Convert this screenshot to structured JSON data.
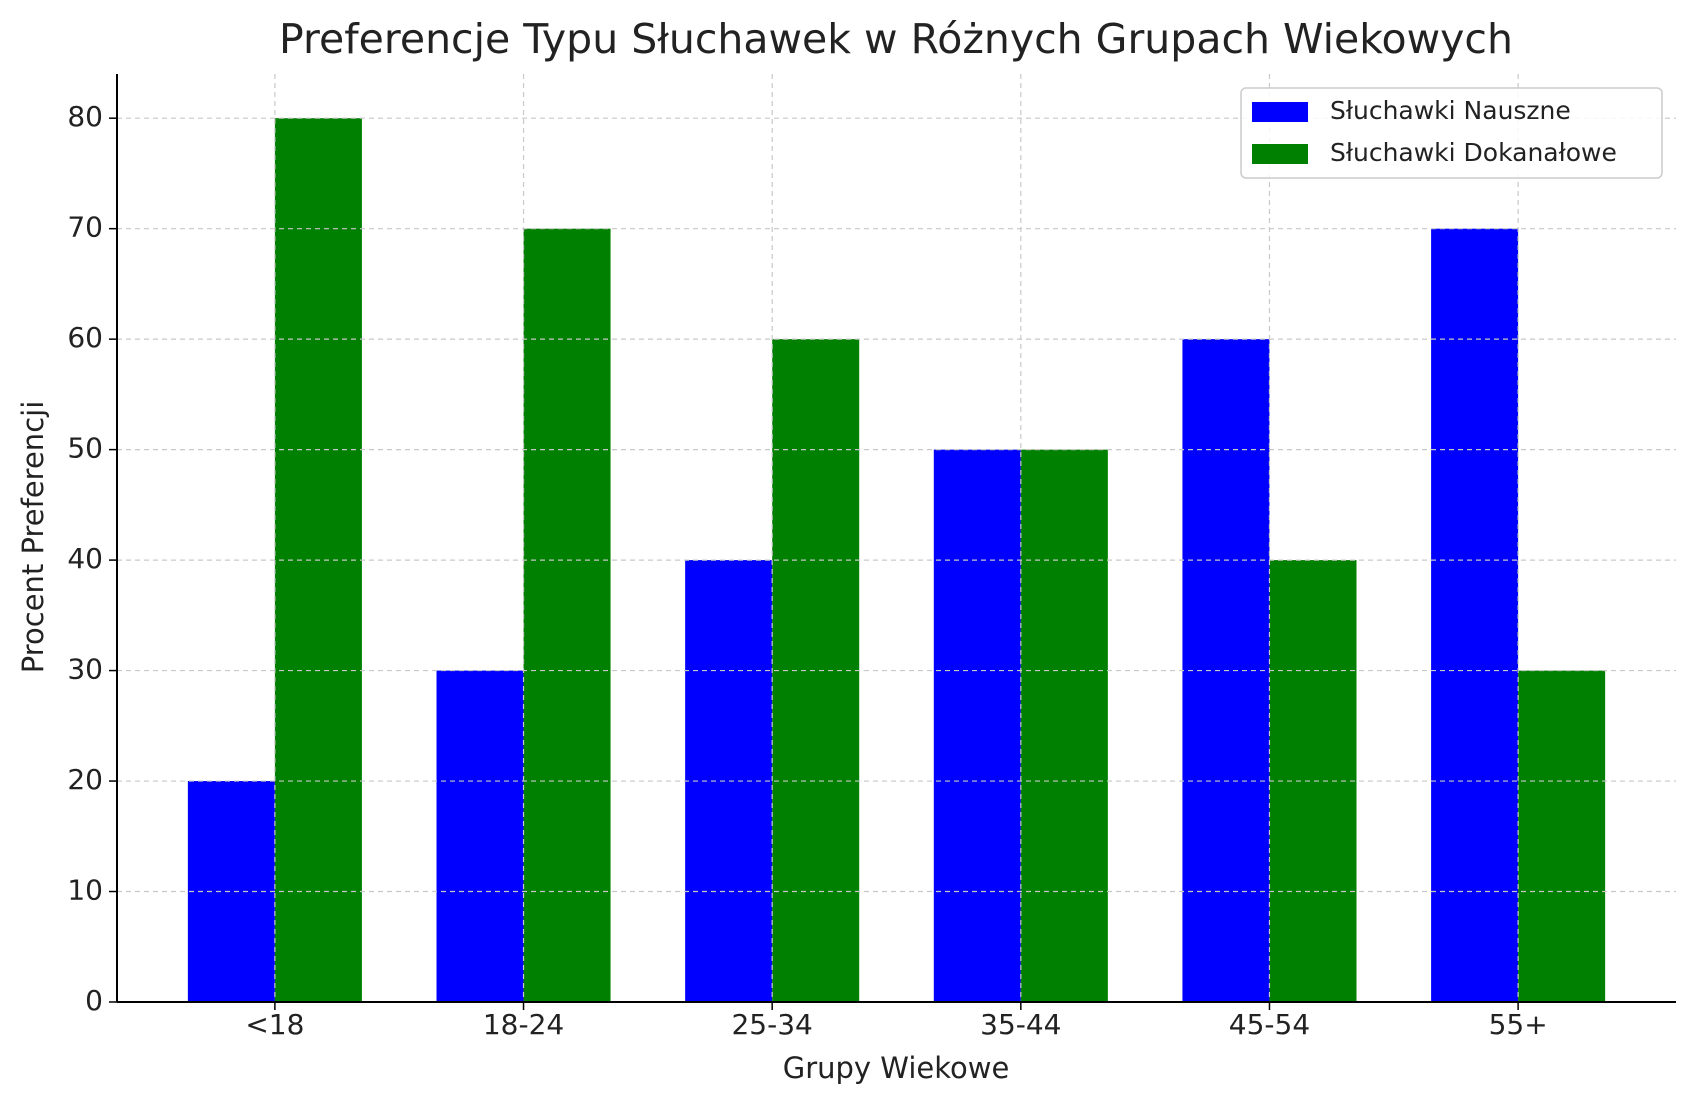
{
  "chart_data": {
    "type": "bar",
    "title": "Preferencje Typu Słuchawek w Różnych Grupach Wiekowych",
    "x_label": "Grupy Wiekowe",
    "y_label": "Procent Preferencji",
    "categories": [
      "<18",
      "18-24",
      "25-34",
      "35-44",
      "45-54",
      "55+"
    ],
    "series": [
      {
        "name": "Słuchawki Nauszne",
        "color": "#0000ff",
        "values": [
          20,
          30,
          40,
          50,
          60,
          70
        ]
      },
      {
        "name": "Słuchawki Dokanałowe",
        "color": "#008000",
        "values": [
          80,
          70,
          60,
          50,
          40,
          30
        ]
      }
    ],
    "ylim": [
      0,
      84
    ],
    "yticks": [
      0,
      10,
      20,
      30,
      40,
      50,
      60,
      70,
      80
    ],
    "grid": true,
    "legend": "upper right"
  }
}
